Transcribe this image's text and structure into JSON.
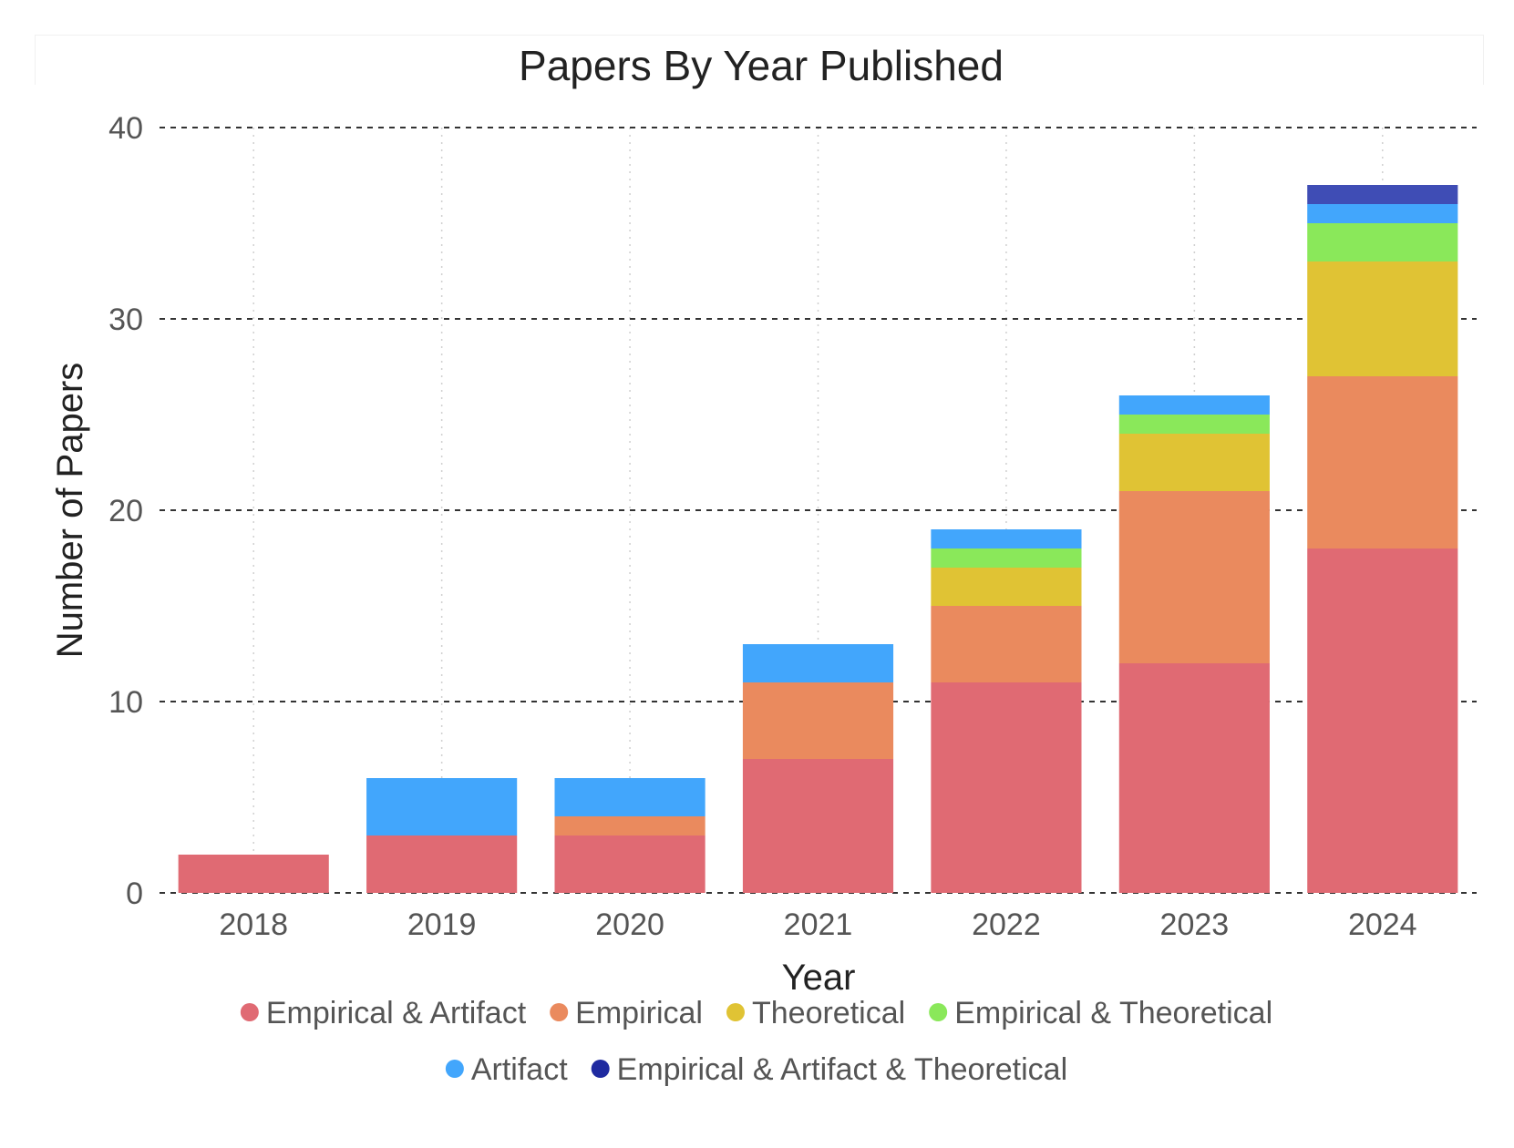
{
  "chart_data": {
    "type": "bar",
    "stacked": true,
    "title": "Papers By Year Published",
    "xlabel": "Year",
    "ylabel": "Number of Papers",
    "ylim": [
      0,
      40
    ],
    "yticks": [
      0,
      10,
      20,
      30,
      40
    ],
    "grid": true,
    "legend_position": "bottom",
    "categories": [
      "2018",
      "2019",
      "2020",
      "2021",
      "2022",
      "2023",
      "2024"
    ],
    "series": [
      {
        "name": "Empirical & Artifact",
        "color": "#e06a73",
        "values": [
          2,
          3,
          3,
          7,
          11,
          12,
          18
        ]
      },
      {
        "name": "Empirical",
        "color": "#ea8a5e",
        "values": [
          0,
          0,
          1,
          4,
          4,
          9,
          9
        ]
      },
      {
        "name": "Theoretical",
        "color": "#e0c334",
        "values": [
          0,
          0,
          0,
          0,
          2,
          3,
          6
        ]
      },
      {
        "name": "Empirical & Theoretical",
        "color": "#8ae85a",
        "values": [
          0,
          0,
          0,
          0,
          1,
          1,
          2
        ]
      },
      {
        "name": "Artifact",
        "color": "#42a6fc",
        "values": [
          0,
          3,
          2,
          2,
          1,
          1,
          1
        ]
      },
      {
        "name": "Empirical & Artifact & Theoretical",
        "color": "#1f2aa0",
        "bar_color": "#3f4db5",
        "values": [
          0,
          0,
          0,
          0,
          0,
          0,
          1
        ]
      }
    ]
  }
}
